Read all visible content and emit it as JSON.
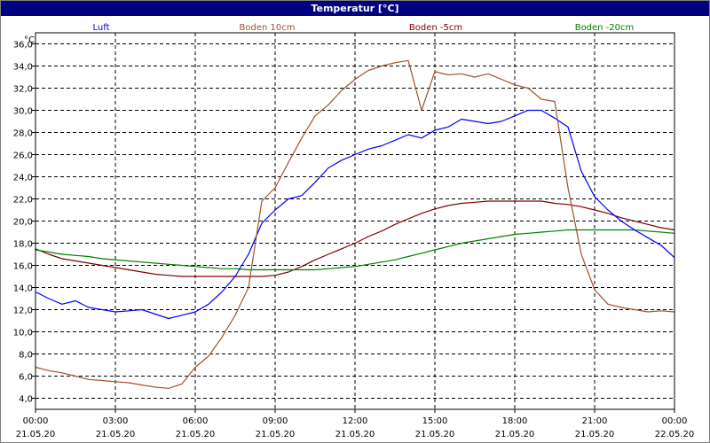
{
  "window": {
    "title": "Temperatur [°C]"
  },
  "colors": {
    "titlebar": "#000080",
    "grid": "#000000",
    "background": "#ffffff"
  },
  "chart_data": {
    "type": "line",
    "title": "Temperatur [°C]",
    "ylabel": "°C",
    "ylim": [
      3.0,
      37.0
    ],
    "xlim": [
      "21.05.20 00:00",
      "22.05.20 00:00"
    ],
    "y_ticks": [
      "4,0",
      "6,0",
      "8,0",
      "10,0",
      "12,0",
      "14,0",
      "16,0",
      "18,0",
      "20,0",
      "22,0",
      "24,0",
      "26,0",
      "28,0",
      "30,0",
      "32,0",
      "34,0",
      "36,0"
    ],
    "x_ticks": [
      {
        "time": "00:00",
        "date": "21.05.20"
      },
      {
        "time": "03:00",
        "date": "21.05.20"
      },
      {
        "time": "06:00",
        "date": "21.05.20"
      },
      {
        "time": "09:00",
        "date": "21.05.20"
      },
      {
        "time": "12:00",
        "date": "21.05.20"
      },
      {
        "time": "15:00",
        "date": "21.05.20"
      },
      {
        "time": "18:00",
        "date": "21.05.20"
      },
      {
        "time": "21:00",
        "date": "21.05.20"
      },
      {
        "time": "00:00",
        "date": "22.05.20"
      }
    ],
    "grid": true,
    "legend": "top",
    "x_hours": [
      0,
      0.5,
      1,
      1.5,
      2,
      2.5,
      3,
      3.5,
      4,
      4.5,
      5,
      5.5,
      6,
      6.5,
      7,
      7.5,
      8,
      8.5,
      9,
      9.5,
      10,
      10.5,
      11,
      11.5,
      12,
      12.5,
      13,
      13.5,
      14,
      14.5,
      15,
      15.5,
      16,
      16.5,
      17,
      17.5,
      18,
      18.5,
      19,
      19.5,
      20,
      20.5,
      21,
      21.5,
      22,
      22.5,
      23,
      23.5,
      24
    ],
    "series": [
      {
        "name": "Luft",
        "color": "#0000ff",
        "values": [
          13.6,
          13.0,
          12.5,
          12.8,
          12.2,
          12.0,
          11.8,
          11.9,
          12.0,
          11.6,
          11.2,
          11.5,
          11.8,
          12.5,
          13.6,
          15.0,
          17.0,
          19.8,
          21.0,
          22.0,
          22.3,
          23.5,
          24.8,
          25.5,
          26.0,
          26.5,
          26.8,
          27.3,
          27.8,
          27.5,
          28.2,
          28.5,
          29.2,
          29.0,
          28.8,
          29.0,
          29.5,
          30.0,
          30.0,
          29.3,
          28.5,
          24.5,
          22.2,
          21.0,
          20.0,
          19.2,
          18.5,
          17.8,
          16.7
        ]
      },
      {
        "name": "Boden 10cm",
        "color": "#a0522d",
        "values": [
          6.8,
          6.5,
          6.3,
          6.0,
          5.7,
          5.6,
          5.5,
          5.4,
          5.2,
          5.0,
          4.9,
          5.3,
          6.8,
          7.8,
          9.5,
          11.5,
          14.0,
          21.8,
          23.0,
          25.3,
          27.5,
          29.5,
          30.5,
          31.8,
          32.8,
          33.6,
          34.0,
          34.3,
          34.5,
          30.0,
          33.5,
          33.2,
          33.3,
          33.0,
          33.3,
          32.8,
          32.3,
          32.0,
          31.0,
          30.8,
          23.0,
          17.0,
          13.8,
          12.5,
          12.2,
          12.0,
          11.8,
          11.9,
          11.8
        ]
      },
      {
        "name": "Boden -5cm",
        "color": "#800000",
        "values": [
          17.5,
          17.0,
          16.6,
          16.4,
          16.2,
          16.0,
          15.8,
          15.6,
          15.4,
          15.2,
          15.1,
          15.0,
          15.0,
          15.0,
          15.0,
          15.0,
          15.0,
          15.0,
          15.1,
          15.4,
          15.9,
          16.5,
          17.0,
          17.5,
          18.0,
          18.6,
          19.1,
          19.7,
          20.2,
          20.7,
          21.1,
          21.4,
          21.6,
          21.7,
          21.8,
          21.8,
          21.8,
          21.8,
          21.8,
          21.6,
          21.5,
          21.3,
          21.0,
          20.7,
          20.3,
          20.0,
          19.7,
          19.4,
          19.2
        ]
      },
      {
        "name": "Boden -20cm",
        "color": "#008000",
        "values": [
          17.4,
          17.2,
          17.0,
          16.9,
          16.8,
          16.6,
          16.5,
          16.4,
          16.3,
          16.2,
          16.1,
          16.0,
          15.9,
          15.8,
          15.7,
          15.7,
          15.6,
          15.6,
          15.6,
          15.6,
          15.6,
          15.6,
          15.7,
          15.8,
          15.9,
          16.1,
          16.3,
          16.5,
          16.8,
          17.1,
          17.4,
          17.7,
          18.0,
          18.2,
          18.4,
          18.6,
          18.8,
          18.9,
          19.0,
          19.1,
          19.2,
          19.2,
          19.2,
          19.2,
          19.2,
          19.2,
          19.1,
          19.0,
          18.9
        ]
      }
    ]
  }
}
